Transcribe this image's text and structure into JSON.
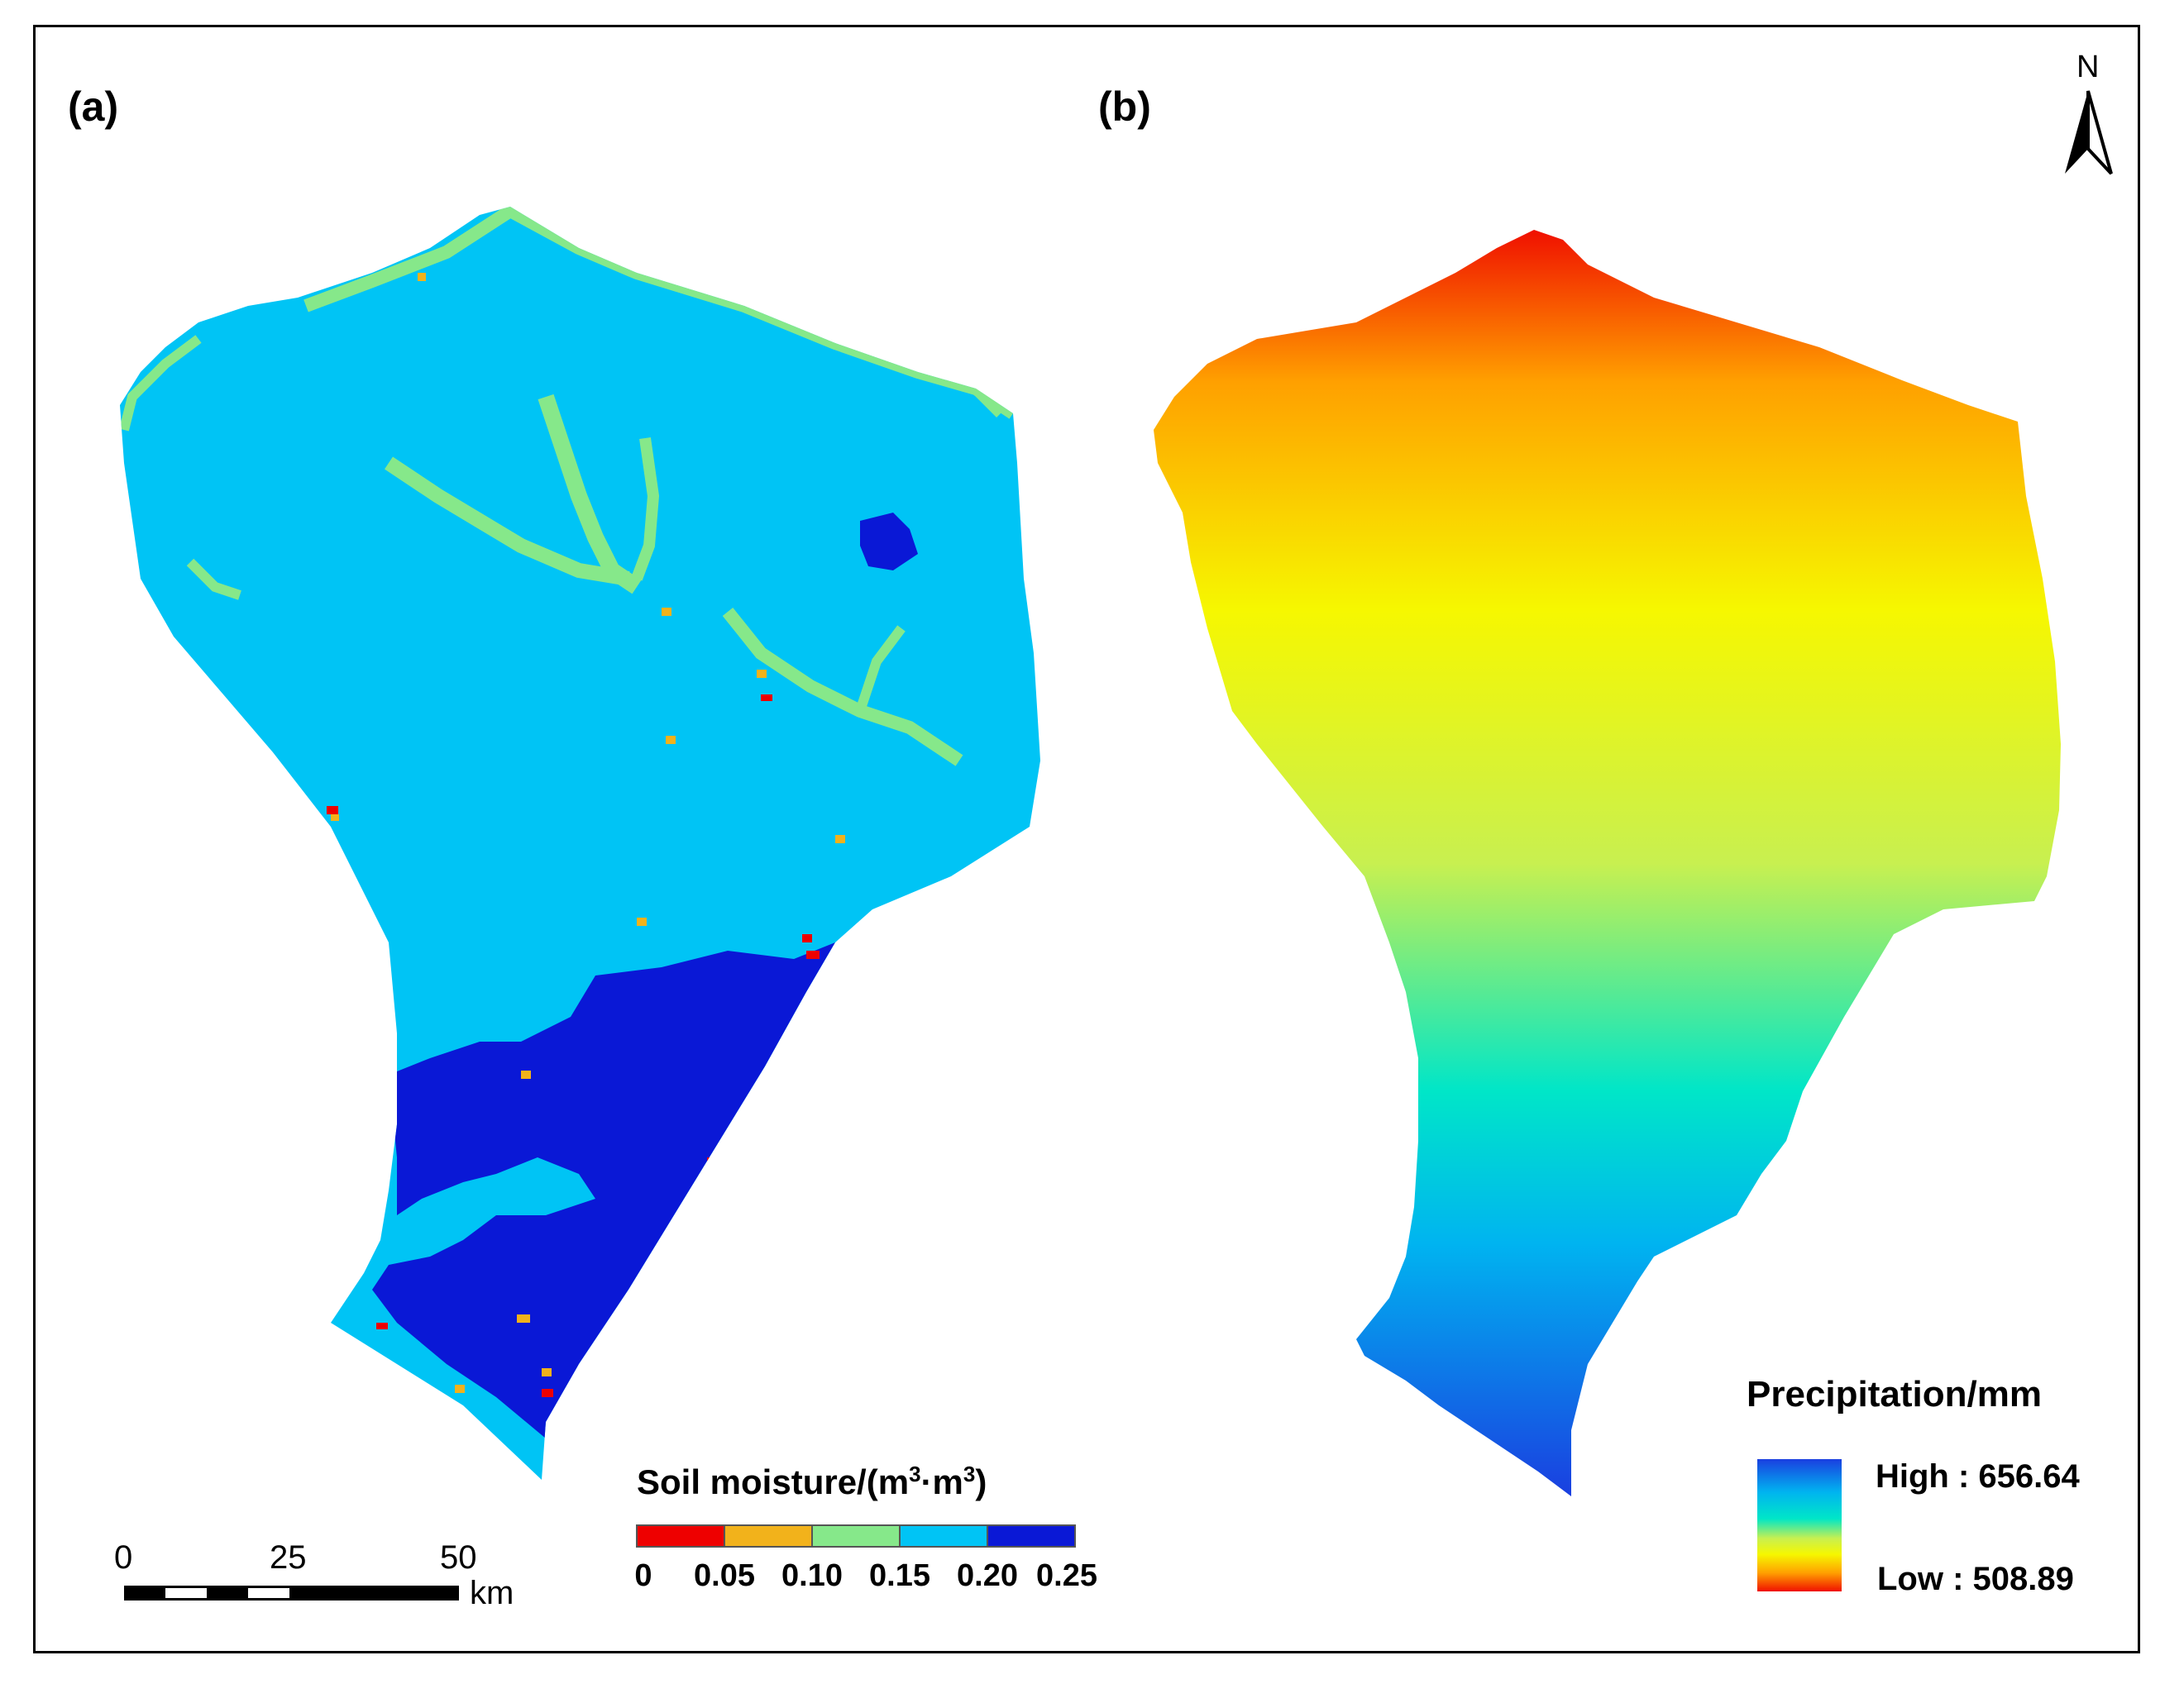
{
  "panel_a": {
    "label": "(a)",
    "legend": {
      "title": "Soil moisture/(m",
      "title_sup1": "3",
      "title_mid": "·m",
      "title_sup2": "3",
      "title_end": ")",
      "classes": [
        {
          "from": 0,
          "to": 0.05,
          "color": "#ee0000"
        },
        {
          "from": 0.05,
          "to": 0.1,
          "color": "#f2b21b"
        },
        {
          "from": 0.1,
          "to": 0.15,
          "color": "#86e88a"
        },
        {
          "from": 0.15,
          "to": 0.2,
          "color": "#00c4f5"
        },
        {
          "from": 0.2,
          "to": 0.25,
          "color": "#0a18d6"
        }
      ],
      "ticks": [
        "0",
        "0.05",
        "0.10",
        "0.15",
        "0.20",
        "0.25"
      ]
    },
    "colors": {
      "base": "#00c4f5",
      "wet": "#0a18d6",
      "green": "#86e88a",
      "orange": "#f2b21b",
      "red": "#ee0000"
    }
  },
  "panel_b": {
    "label": "(b)",
    "legend": {
      "title": "Precipitation/mm",
      "high_label": "High : 656.64",
      "low_label": "Low : 508.89",
      "high_value": 656.64,
      "low_value": 508.89
    },
    "ramp_colors": [
      "#1a3fe0",
      "#00b4f0",
      "#00e6c8",
      "#c8f050",
      "#f6f700",
      "#ffa000",
      "#f01000"
    ]
  },
  "scale_bar": {
    "ticks": [
      "0",
      "25",
      "50"
    ],
    "unit": "km"
  },
  "north_arrow": {
    "label": "N"
  }
}
